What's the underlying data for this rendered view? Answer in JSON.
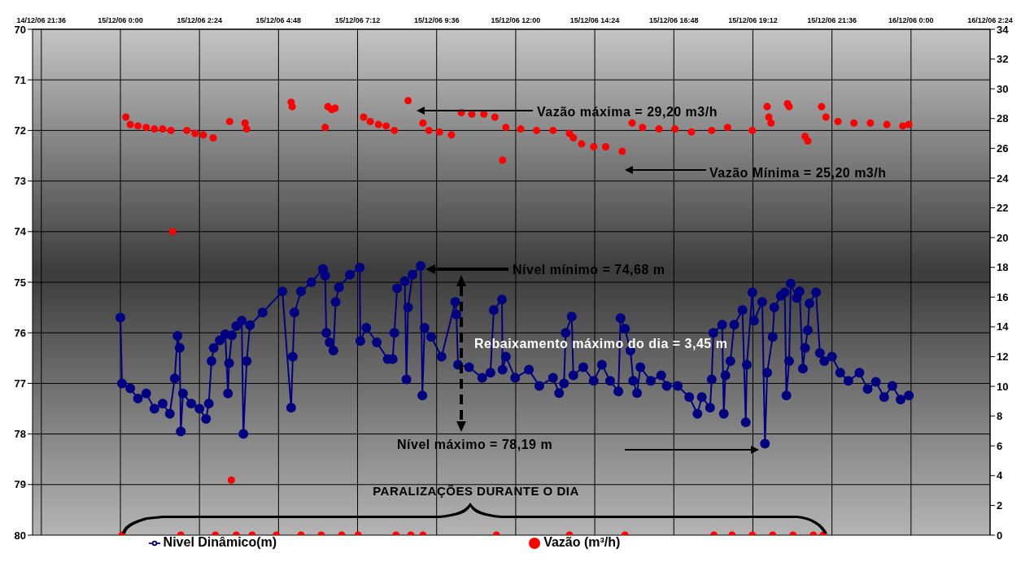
{
  "chart_data": {
    "type": "line",
    "xlim": [
      "--12-14T21:20",
      "--12-16T02:24"
    ],
    "xticks": [
      {
        "value": "--12-14T21:36",
        "label": "14/12/06 21:36"
      },
      {
        "value": "--12-15T00:00",
        "label": "15/12/06 0:00"
      },
      {
        "value": "--12-15T02:24",
        "label": "15/12/06 2:24"
      },
      {
        "value": "--12-15T04:48",
        "label": "15/12/06 4:48"
      },
      {
        "value": "--12-15T07:12",
        "label": "15/12/06 7:12"
      },
      {
        "value": "--12-15T09:36",
        "label": "15/12/06 9:36"
      },
      {
        "value": "--12-15T12:00",
        "label": "15/12/06 12:00"
      },
      {
        "value": "--12-15T14:24",
        "label": "15/12/06 14:24"
      },
      {
        "value": "--12-15T16:48",
        "label": "15/12/06 16:48"
      },
      {
        "value": "--12-15T19:12",
        "label": "15/12/06 19:12"
      },
      {
        "value": "--12-15T21:36",
        "label": "15/12/06 21:36"
      },
      {
        "value": "--12-16T00:00",
        "label": "16/12/06 0:00"
      },
      {
        "value": "--12-16T02:24",
        "label": "16/12/06 2:24"
      }
    ],
    "ylim": [
      80,
      70
    ],
    "yticks": [
      70,
      71,
      72,
      73,
      74,
      75,
      76,
      77,
      78,
      79,
      80
    ],
    "y2lim": [
      0,
      34
    ],
    "y2ticks": [
      0,
      2,
      4,
      6,
      8,
      10,
      12,
      14,
      16,
      18,
      20,
      22,
      24,
      26,
      28,
      30,
      32,
      34
    ],
    "grid": true,
    "legend": "bottom",
    "marker": "circle",
    "line_style": "solid",
    "series": [
      {
        "name": "Nivel Dinâmico(m)",
        "color": "#000080",
        "x": [
          "--12-15T00:00",
          "--12-15T00:03",
          "--12-15T00:18",
          "--12-15T00:32",
          "--12-15T00:47",
          "--12-15T01:02",
          "--12-15T01:17",
          "--12-15T01:30",
          "--12-15T01:39",
          "--12-15T01:44",
          "--12-15T01:48",
          "--12-15T01:50",
          "--12-15T01:54",
          "--12-15T02:09",
          "--12-15T02:24",
          "--12-15T02:36",
          "--12-15T02:41",
          "--12-15T02:46",
          "--12-15T02:50",
          "--12-15T03:01",
          "--12-15T03:11",
          "--12-15T03:16",
          "--12-15T03:18",
          "--12-15T03:23",
          "--12-15T03:31",
          "--12-15T03:41",
          "--12-15T03:44",
          "--12-15T03:50",
          "--12-15T03:56",
          "--12-15T04:19",
          "--12-15T04:55",
          "--12-15T05:11",
          "--12-15T05:14",
          "--12-15T05:17",
          "--12-15T05:29",
          "--12-15T05:48",
          "--12-15T06:09",
          "--12-15T06:13",
          "--12-15T06:15",
          "--12-15T06:21",
          "--12-15T06:28",
          "--12-15T06:32",
          "--12-15T06:38",
          "--12-15T06:58",
          "--12-15T07:16",
          "--12-15T07:17",
          "--12-15T07:28",
          "--12-15T07:47",
          "--12-15T08:07",
          "--12-15T08:16",
          "--12-15T08:19",
          "--12-15T08:24",
          "--12-15T08:38",
          "--12-15T08:41",
          "--12-15T08:44",
          "--12-15T08:52",
          "--12-15T09:07",
          "--12-15T09:10",
          "--12-15T09:14",
          "--12-15T09:26",
          "--12-15T09:45",
          "--12-15T10:10",
          "--12-15T10:12",
          "--12-15T10:15",
          "--12-15T10:35",
          "--12-15T10:59",
          "--12-15T11:14",
          "--12-15T11:20",
          "--12-15T11:35",
          "--12-15T11:36",
          "--12-15T11:42",
          "--12-15T11:59",
          "--12-15T12:24",
          "--12-15T12:43",
          "--12-15T13:08",
          "--12-15T13:19",
          "--12-15T13:28",
          "--12-15T13:31",
          "--12-15T13:42",
          "--12-15T13:45",
          "--12-15T14:03",
          "--12-15T14:22",
          "--12-15T14:37",
          "--12-15T14:52",
          "--12-15T15:07",
          "--12-15T15:11",
          "--12-15T15:19",
          "--12-15T15:29",
          "--12-15T15:34",
          "--12-15T15:41",
          "--12-15T15:47",
          "--12-15T16:06",
          "--12-15T16:25",
          "--12-15T16:35",
          "--12-15T16:55",
          "--12-15T17:16",
          "--12-15T17:31",
          "--12-15T17:39",
          "--12-15T17:54",
          "--12-15T17:57",
          "--12-15T18:00",
          "--12-15T18:16",
          "--12-15T18:19",
          "--12-15T18:22",
          "--12-15T18:31",
          "--12-15T18:38",
          "--12-15T18:53",
          "--12-15T18:59",
          "--12-15T19:01",
          "--12-15T19:11",
          "--12-15T19:14",
          "--12-15T19:29",
          "--12-15T19:34",
          "--12-15T19:38",
          "--12-15T19:48",
          "--12-15T19:51",
          "--12-15T20:03",
          "--12-15T20:10",
          "--12-15T20:13",
          "--12-15T20:18",
          "--12-15T20:21",
          "--12-15T20:32",
          "--12-15T20:37",
          "--12-15T20:43",
          "--12-15T20:47",
          "--12-15T20:52",
          "--12-15T20:55",
          "--12-15T21:07",
          "--12-15T21:14",
          "--12-15T21:22",
          "--12-15T21:36",
          "--12-15T21:51",
          "--12-15T22:06",
          "--12-15T22:26",
          "--12-15T22:41",
          "--12-15T22:56",
          "--12-15T23:11",
          "--12-15T23:26",
          "--12-15T23:41",
          "--12-15T23:56"
        ],
        "values": [
          75.7,
          77.0,
          77.1,
          77.3,
          77.2,
          77.5,
          77.4,
          77.6,
          76.9,
          76.06,
          76.3,
          77.95,
          77.2,
          77.4,
          77.5,
          77.7,
          77.4,
          76.56,
          76.3,
          76.15,
          76.03,
          77.2,
          76.6,
          76.05,
          75.87,
          75.76,
          78.0,
          76.56,
          75.85,
          75.6,
          75.18,
          77.48,
          76.47,
          75.6,
          75.18,
          75.0,
          74.74,
          74.87,
          76.0,
          76.19,
          76.35,
          75.39,
          75.1,
          74.85,
          74.71,
          76.16,
          75.9,
          76.19,
          76.52,
          76.52,
          76.0,
          75.12,
          74.98,
          76.92,
          75.5,
          74.85,
          74.68,
          77.24,
          75.9,
          76.08,
          76.47,
          75.39,
          75.64,
          76.63,
          76.68,
          76.89,
          76.79,
          75.55,
          75.34,
          76.73,
          76.47,
          76.89,
          76.73,
          77.05,
          76.89,
          77.19,
          77.0,
          76.0,
          75.68,
          76.84,
          76.68,
          76.95,
          76.63,
          76.95,
          77.16,
          75.71,
          75.92,
          76.35,
          76.95,
          77.19,
          76.68,
          76.95,
          76.84,
          77.05,
          77.05,
          77.27,
          77.6,
          77.27,
          77.48,
          76.92,
          76.0,
          75.84,
          77.6,
          76.84,
          76.56,
          75.84,
          75.55,
          77.77,
          76.63,
          75.2,
          75.76,
          75.39,
          78.19,
          76.79,
          76.08,
          75.5,
          75.27,
          75.2,
          77.24,
          76.56,
          75.03,
          75.31,
          75.18,
          76.71,
          76.3,
          75.95,
          75.42,
          75.2,
          76.4,
          76.56,
          76.47,
          76.79,
          76.95,
          76.79,
          77.11,
          76.97,
          77.27,
          77.05,
          77.32,
          77.24
        ]
      },
      {
        "name": "Vazão (m³/h)",
        "type": "scatter",
        "axis": "y2",
        "color": "#ff0000",
        "x": [
          "--12-15T00:10",
          "--12-15T00:18",
          "--12-15T00:32",
          "--12-15T00:47",
          "--12-15T01:02",
          "--12-15T01:17",
          "--12-15T01:32",
          "--12-15T01:35",
          "--12-15T02:01",
          "--12-15T02:16",
          "--12-15T02:31",
          "--12-15T02:49",
          "--12-15T03:19",
          "--12-15T03:22",
          "--12-15T03:47",
          "--12-15T03:50",
          "--12-15T05:11",
          "--12-15T05:13",
          "--12-15T06:13",
          "--12-15T06:18",
          "--12-15T06:25",
          "--12-15T06:31",
          "--12-15T07:23",
          "--12-15T07:35",
          "--12-15T07:50",
          "--12-15T08:04",
          "--12-15T08:19",
          "--12-15T08:44",
          "--12-15T09:11",
          "--12-15T09:22",
          "--12-15T09:41",
          "--12-15T10:03",
          "--12-15T10:21",
          "--12-15T10:40",
          "--12-15T11:02",
          "--12-15T11:22",
          "--12-15T11:36",
          "--12-15T11:42",
          "--12-15T12:09",
          "--12-15T12:38",
          "--12-15T13:08",
          "--12-15T13:38",
          "--12-15T13:45",
          "--12-15T14:00",
          "--12-15T14:22",
          "--12-15T14:44",
          "--12-15T15:14",
          "--12-15T15:32",
          "--12-15T15:51",
          "--12-15T16:21",
          "--12-15T16:50",
          "--12-15T17:20",
          "--12-15T17:57",
          "--12-15T18:26",
          "--12-15T19:11",
          "--12-15T19:38",
          "--12-15T19:41",
          "--12-15T19:45",
          "--12-15T20:15",
          "--12-15T20:18",
          "--12-15T20:47",
          "--12-15T20:52",
          "--12-15T21:17",
          "--12-15T21:25",
          "--12-15T21:47",
          "--12-15T22:16",
          "--12-15T22:46",
          "--12-15T23:16",
          "--12-15T23:45",
          "--12-15T23:56",
          "--12-15T00:03",
          "--12-15T01:50",
          "--12-15T02:53",
          "--12-15T03:31",
          "--12-15T04:00",
          "--12-15T04:44",
          "--12-15T05:29",
          "--12-15T06:06",
          "--12-15T06:43",
          "--12-15T07:13",
          "--12-15T08:22",
          "--12-15T08:49",
          "--12-15T09:11",
          "--12-15T11:25",
          "--12-15T13:38",
          "--12-15T15:19",
          "--12-15T18:01",
          "--12-15T18:34",
          "--12-15T19:11",
          "--12-15T19:48",
          "--12-15T20:25",
          "--12-15T21:02",
          "--12-15T21:20"
        ],
        "values": [
          28.1,
          27.6,
          27.5,
          27.4,
          27.3,
          27.3,
          27.2,
          20.4,
          27.2,
          27.0,
          26.9,
          26.7,
          27.8,
          3.7,
          27.7,
          27.3,
          29.1,
          28.8,
          27.4,
          28.8,
          28.6,
          28.7,
          28.1,
          27.8,
          27.6,
          27.5,
          27.2,
          29.2,
          27.7,
          27.2,
          27.1,
          26.9,
          28.4,
          28.3,
          28.3,
          28.1,
          25.2,
          27.4,
          27.3,
          27.2,
          27.2,
          27.0,
          26.7,
          26.3,
          26.1,
          26.1,
          25.8,
          27.7,
          27.4,
          27.3,
          27.3,
          27.1,
          27.2,
          27.4,
          27.2,
          28.8,
          28.1,
          27.7,
          29.0,
          28.8,
          26.8,
          26.5,
          28.8,
          28.1,
          27.8,
          27.7,
          27.7,
          27.6,
          27.5,
          27.6,
          0,
          0,
          0,
          0,
          0,
          0,
          0,
          0,
          0,
          0,
          0,
          0,
          0,
          0,
          0,
          0,
          0,
          0,
          0,
          0,
          0,
          0,
          0
        ]
      }
    ],
    "annotations": [
      "Vazão máxima = 29,20 m3/h",
      "Vazão Mínima = 25,20 m3/h",
      "Nível mínimo = 74,68 m",
      "Rebaixamento máximo do dia = 3,45 m",
      "Nível máximo = 78,19 m",
      "PARALIZAÇÕES DURANTE O DIA"
    ]
  }
}
